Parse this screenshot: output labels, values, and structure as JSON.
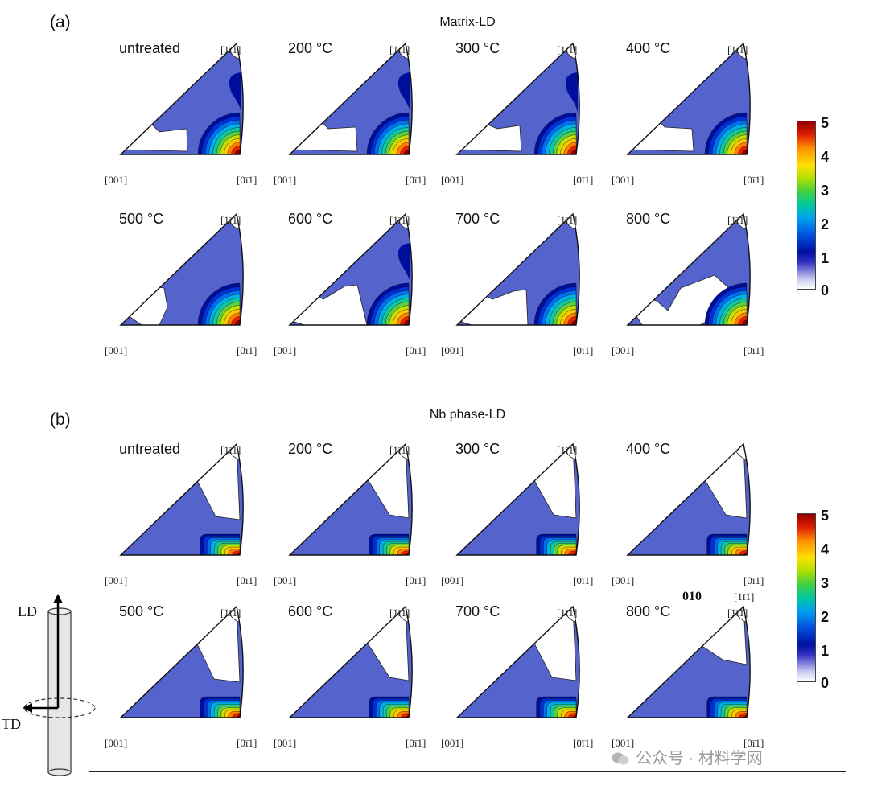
{
  "panels": [
    {
      "letter": "(a)",
      "title": "Matrix-LD",
      "plots": [
        {
          "condition": "untreated",
          "white_region": [
            [
              22,
              136
            ],
            [
              40,
              105
            ],
            [
              60,
              104
            ],
            [
              70,
              114
            ],
            [
              104,
              110
            ],
            [
              105,
              138
            ]
          ],
          "bump": true
        },
        {
          "condition": "200 °C",
          "white_region": [
            [
              22,
              136
            ],
            [
              38,
              96
            ],
            [
              58,
              98
            ],
            [
              70,
              110
            ],
            [
              104,
              108
            ],
            [
              106,
              138
            ]
          ],
          "bump": true
        },
        {
          "condition": "300 °C",
          "white_region": [
            [
              22,
              136
            ],
            [
              40,
              100
            ],
            [
              58,
              104
            ],
            [
              72,
              110
            ],
            [
              100,
              106
            ],
            [
              102,
              138
            ]
          ],
          "bump": true
        },
        {
          "condition": "400 °C",
          "white_region": [
            [
              22,
              136
            ],
            [
              42,
              96
            ],
            [
              58,
              98
            ],
            [
              68,
              108
            ],
            [
              102,
              110
            ],
            [
              104,
              138
            ]
          ],
          "bump": false
        },
        {
          "condition": "500 °C",
          "white_region": [
            [
              28,
              128
            ],
            [
              58,
              94
            ],
            [
              76,
              96
            ],
            [
              80,
              120
            ],
            [
              70,
              142
            ],
            [
              48,
              142
            ]
          ],
          "bump": false
        },
        {
          "condition": "600 °C",
          "white_region": [
            [
              22,
              136
            ],
            [
              46,
              100
            ],
            [
              64,
              110
            ],
            [
              90,
              94
            ],
            [
              106,
              92
            ],
            [
              118,
              142
            ],
            [
              40,
              142
            ]
          ],
          "bump": true
        },
        {
          "condition": "700 °C",
          "white_region": [
            [
              22,
              136
            ],
            [
              46,
              100
            ],
            [
              66,
              110
            ],
            [
              92,
              100
            ],
            [
              108,
              98
            ],
            [
              110,
              142
            ],
            [
              40,
              142
            ]
          ],
          "bump": false
        },
        {
          "condition": "800 °C",
          "white_region": [
            [
              30,
              126
            ],
            [
              44,
              108
            ],
            [
              58,
              112
            ],
            [
              72,
              124
            ],
            [
              88,
              96
            ],
            [
              130,
              80
            ],
            [
              152,
              100
            ],
            [
              130,
              132
            ],
            [
              112,
              142
            ],
            [
              40,
              142
            ]
          ],
          "bump": false
        }
      ]
    },
    {
      "letter": "(b)",
      "title": "Nb phase-LD",
      "plots": [
        {
          "condition": "untreated",
          "white_region": [
            [
              112,
              40
            ],
            [
              140,
              94
            ],
            [
              170,
              98
            ],
            [
              166,
              4
            ],
            [
              150,
              2
            ]
          ],
          "bump": false
        },
        {
          "condition": "200 °C",
          "white_region": [
            [
              114,
              40
            ],
            [
              146,
              92
            ],
            [
              170,
              96
            ],
            [
              166,
              4
            ],
            [
              150,
              2
            ]
          ],
          "bump": false
        },
        {
          "condition": "300 °C",
          "white_region": [
            [
              114,
              42
            ],
            [
              142,
              92
            ],
            [
              170,
              96
            ],
            [
              166,
              4
            ],
            [
              150,
              2
            ]
          ],
          "bump": false
        },
        {
          "condition": "400 °C",
          "white_region": [
            [
              114,
              42
            ],
            [
              144,
              92
            ],
            [
              170,
              96
            ],
            [
              166,
              4
            ],
            [
              150,
              2
            ]
          ],
          "bump": false
        },
        {
          "condition": "500 °C",
          "white_region": [
            [
              112,
              40
            ],
            [
              138,
              94
            ],
            [
              170,
              98
            ],
            [
              166,
              4
            ],
            [
              150,
              2
            ]
          ],
          "bump": false
        },
        {
          "condition": "600 °C",
          "white_region": [
            [
              114,
              42
            ],
            [
              146,
              92
            ],
            [
              170,
              96
            ],
            [
              166,
              4
            ],
            [
              150,
              2
            ]
          ],
          "bump": false
        },
        {
          "condition": "700 °C",
          "white_region": [
            [
              114,
              42
            ],
            [
              140,
              92
            ],
            [
              170,
              96
            ],
            [
              166,
              4
            ],
            [
              150,
              2
            ]
          ],
          "bump": false
        },
        {
          "condition": "800 °C",
          "white_region": [
            [
              104,
              46
            ],
            [
              140,
              70
            ],
            [
              170,
              76
            ],
            [
              166,
              4
            ],
            [
              150,
              2
            ]
          ],
          "bump": false
        }
      ]
    }
  ],
  "ipf_labels": {
    "top": "[1ī1]",
    "left": "[001]",
    "right": "[0ī1]"
  },
  "extra_label": "010",
  "colorbar": {
    "ticks": [
      "5",
      "4",
      "3",
      "2",
      "1",
      "0"
    ],
    "min": 0,
    "max": 5
  },
  "colors": {
    "base_fill": "#5563cc",
    "outline": "#111111",
    "contours": [
      "#000e9c",
      "#0030d8",
      "#0070f0",
      "#00b0e8",
      "#10c8a0",
      "#5cd040",
      "#c8e000",
      "#ffc800",
      "#ff8000",
      "#e82000",
      "#8a0000"
    ]
  },
  "sample_axes": {
    "ld": "LD",
    "td": "TD"
  },
  "watermark": "公众号 · 材料学网"
}
